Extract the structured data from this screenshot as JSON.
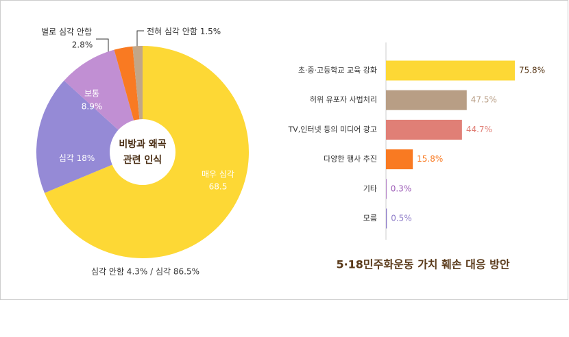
{
  "chart_data": [
    {
      "type": "donut",
      "categories": [
        "매우 심각",
        "심각",
        "보통",
        "별로 심각 안함",
        "전혀 심각 안함"
      ],
      "values": [
        68.5,
        18,
        8.9,
        2.8,
        1.5
      ],
      "value_labels": [
        "68.5",
        "18%",
        "8.9%",
        "2.8%",
        "1.5%"
      ],
      "colors": [
        "#fdd835",
        "#958ad6",
        "#c18fd3",
        "#f97a22",
        "#c2a688"
      ],
      "center_text": [
        "비방과 왜곡",
        "관련 인식"
      ],
      "annotation": "심각 안함 4.3% / 심각 86.5%"
    },
    {
      "type": "hbar",
      "title": "5·18민주화운동 가치 훼손 대응 방안",
      "categories": [
        "초·중·고등학교 교육 강화",
        "허위 유포자 사법처리",
        "TV,인터넷 등의 미디어 광고",
        "다양한 행사 추진",
        "기타",
        "모름"
      ],
      "values": [
        75.8,
        47.5,
        44.7,
        15.8,
        0.3,
        0.5
      ],
      "value_labels": [
        "75.8%",
        "47.5%",
        "44.7%",
        "15.8%",
        "0.3%",
        "0.5%"
      ],
      "colors": [
        "#fdd835",
        "#b89e85",
        "#e07f76",
        "#f97a22",
        "#9b59b6",
        "#8e7cc8"
      ],
      "value_label_colors": [
        "#5a3a1a",
        "#b89e85",
        "#e07f76",
        "#f97a22",
        "#9b59b6",
        "#8e7cc8"
      ]
    }
  ]
}
